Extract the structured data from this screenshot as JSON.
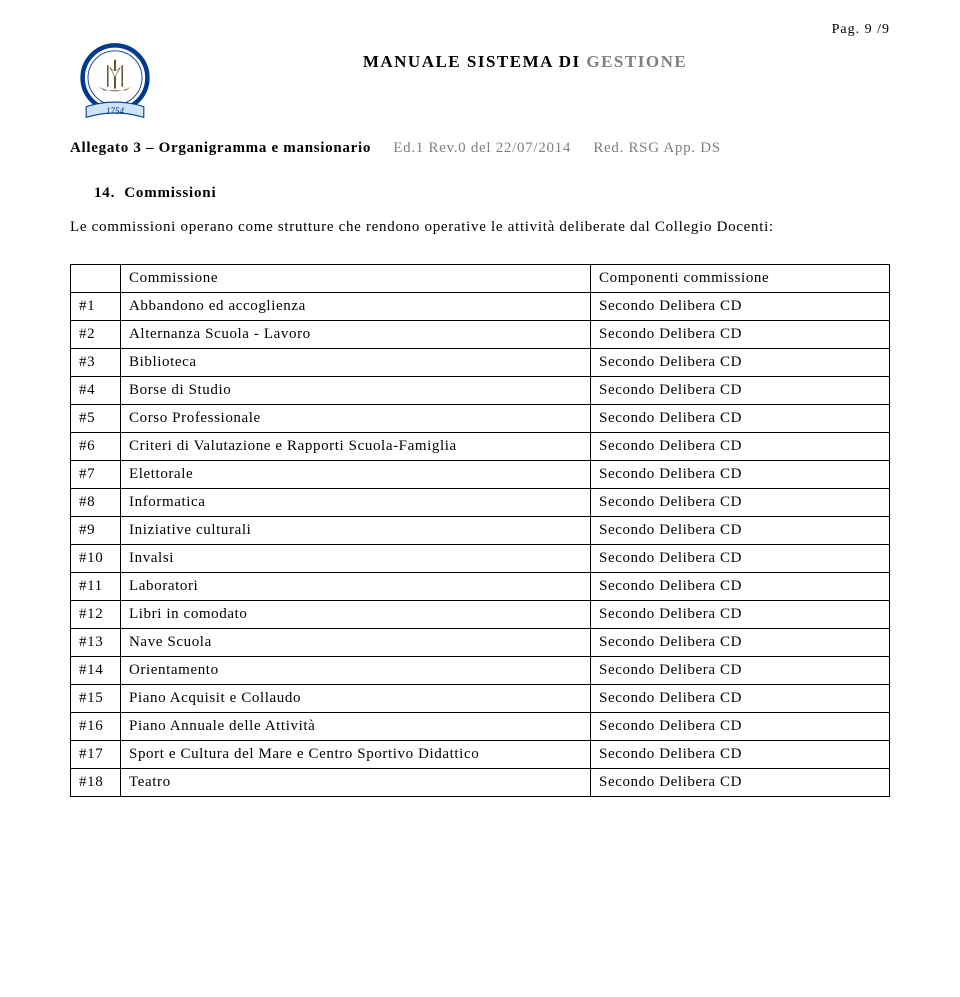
{
  "page_number": "Pag. 9 /9",
  "logo": {
    "ring_color": "#003a8c",
    "ribbon_color": "#cfe3f7",
    "year": "1754",
    "ship_color": "#5a3b1a"
  },
  "doc_title_prefix": "MANUALE SISTEMA DI ",
  "doc_title_grey": "GESTIONE",
  "meta": {
    "attachment": "Allegato 3 – Organigramma e mansionario",
    "edition": "Ed.1 Rev.0 del ",
    "date": "22/07/2014",
    "red": "Red. RSG App. DS"
  },
  "section": {
    "number": "14.",
    "title": "Commissioni",
    "body": "Le commissioni operano come strutture che rendono operative le attività deliberate dal Collegio Docenti:"
  },
  "table": {
    "header_idx": "",
    "header_name": "Commissione",
    "header_comp": "Componenti commissione",
    "rows": [
      {
        "idx": "#1",
        "name": "Abbandono ed accoglienza",
        "comp": "Secondo Delibera CD"
      },
      {
        "idx": "#2",
        "name": "Alternanza Scuola - Lavoro",
        "comp": "Secondo Delibera CD"
      },
      {
        "idx": "#3",
        "name": "Biblioteca",
        "comp": "Secondo Delibera CD"
      },
      {
        "idx": "#4",
        "name": "Borse di Studio",
        "comp": "Secondo Delibera CD"
      },
      {
        "idx": "#5",
        "name": "Corso Professionale",
        "comp": "Secondo Delibera CD"
      },
      {
        "idx": "#6",
        "name": "Criteri di Valutazione e Rapporti Scuola-Famiglia",
        "comp": "Secondo Delibera CD"
      },
      {
        "idx": "#7",
        "name": "Elettorale",
        "comp": "Secondo Delibera CD"
      },
      {
        "idx": "#8",
        "name": "Informatica",
        "comp": "Secondo Delibera CD"
      },
      {
        "idx": "#9",
        "name": "Iniziative culturali",
        "comp": "Secondo Delibera CD"
      },
      {
        "idx": "#10",
        "name": "Invalsi",
        "comp": "Secondo Delibera CD"
      },
      {
        "idx": "#11",
        "name": "Laboratori",
        "comp": "Secondo Delibera CD"
      },
      {
        "idx": "#12",
        "name": "Libri in comodato",
        "comp": "Secondo Delibera CD"
      },
      {
        "idx": "#13",
        "name": "Nave Scuola",
        "comp": "Secondo Delibera CD"
      },
      {
        "idx": "#14",
        "name": "Orientamento",
        "comp": "Secondo Delibera CD"
      },
      {
        "idx": "#15",
        "name": "Piano Acquisit e Collaudo",
        "comp": "Secondo Delibera CD"
      },
      {
        "idx": "#16",
        "name": "Piano Annuale delle Attività",
        "comp": "Secondo Delibera CD"
      },
      {
        "idx": "#17",
        "name": "Sport e Cultura del Mare e Centro Sportivo Didattico",
        "comp": "Secondo Delibera CD"
      },
      {
        "idx": "#18",
        "name": "Teatro",
        "comp": "Secondo Delibera CD"
      }
    ]
  }
}
